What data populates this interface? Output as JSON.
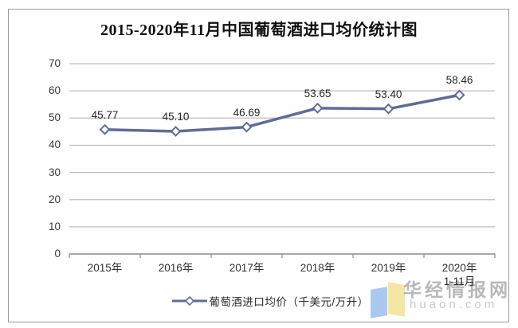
{
  "chart_data": {
    "type": "line",
    "title": "2015-2020年11月中国葡萄酒进口均价统计图",
    "categories": [
      "2015年",
      "2016年",
      "2017年",
      "2018年",
      "2019年",
      "2020年"
    ],
    "x_sublabels": [
      "",
      "",
      "",
      "",
      "",
      "1-11月"
    ],
    "values": [
      45.77,
      45.1,
      46.69,
      53.65,
      53.4,
      58.46
    ],
    "data_labels": [
      "45.77",
      "45.10",
      "46.69",
      "53.65",
      "53.40",
      "58.46"
    ],
    "legend": "葡萄酒进口均价（千美元/万升）",
    "ylim": [
      0,
      70
    ],
    "yticks": [
      0,
      10,
      20,
      30,
      40,
      50,
      60,
      70
    ],
    "grid": true,
    "legend_position": "bottom",
    "line_color": "#5e6d97",
    "marker": "diamond-open",
    "marker_fill": "#ffffff",
    "grid_color": "#bcbcbc",
    "axis_color": "#8a8a8a"
  },
  "watermark": {
    "brand": "华经情报网",
    "domain": "huaon.com",
    "logo_left_color": "#a9c9ef",
    "logo_right_color": "#f4e6a4"
  }
}
